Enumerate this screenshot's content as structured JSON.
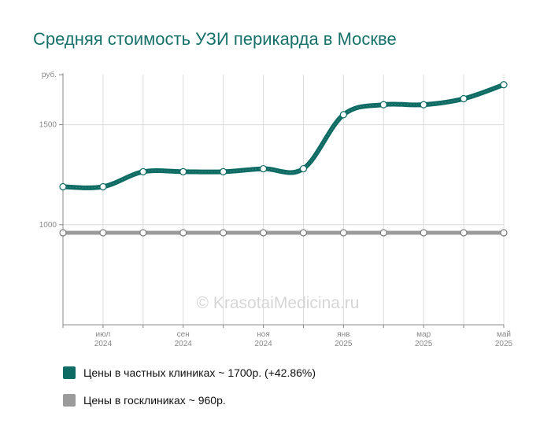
{
  "title": "Средняя стоимость УЗИ перикарда в Москве",
  "watermark": "© KrasotaiMedicina.ru",
  "colors": {
    "title": "#17716a",
    "private": "#0e6b63",
    "public": "#9b9b9b",
    "grid": "#dcdcdc",
    "axis": "#888888",
    "tick_text": "#888888"
  },
  "chart_data": {
    "type": "line",
    "title": "Средняя стоимость УЗИ перикарда в Москве",
    "ylabel": "руб.",
    "ylim": [
      500,
      1750
    ],
    "yticks": [
      {
        "value": 1000,
        "label": "1000"
      },
      {
        "value": 1500,
        "label": "1500"
      },
      {
        "value": 1750,
        "label": "руб."
      }
    ],
    "x": [
      "2024-06",
      "2024-07",
      "2024-08",
      "2024-09",
      "2024-10",
      "2024-11",
      "2024-12",
      "2025-01",
      "2025-02",
      "2025-03",
      "2025-04",
      "2025-05"
    ],
    "xtick_labels": [
      {
        "index": 1,
        "month": "июл",
        "year": "2024"
      },
      {
        "index": 3,
        "month": "сен",
        "year": "2024"
      },
      {
        "index": 5,
        "month": "ноя",
        "year": "2024"
      },
      {
        "index": 7,
        "month": "янв",
        "year": "2025"
      },
      {
        "index": 9,
        "month": "мар",
        "year": "2025"
      },
      {
        "index": 11,
        "month": "май",
        "year": "2025"
      }
    ],
    "grid": true,
    "legend_position": "bottom",
    "series": [
      {
        "name": "Цены в частных клиниках",
        "legend_label": "Цены в частных клиниках ~ 1700р. (+42.86%)",
        "color": "#0e6b63",
        "values": [
          1190,
          1190,
          1265,
          1265,
          1265,
          1280,
          1280,
          1550,
          1600,
          1600,
          1630,
          1700
        ]
      },
      {
        "name": "Цены в госклиниках",
        "legend_label": "Цены в госклиниках ~ 960р.",
        "color": "#9b9b9b",
        "values": [
          960,
          960,
          960,
          960,
          960,
          960,
          960,
          960,
          960,
          960,
          960,
          960
        ]
      }
    ]
  }
}
